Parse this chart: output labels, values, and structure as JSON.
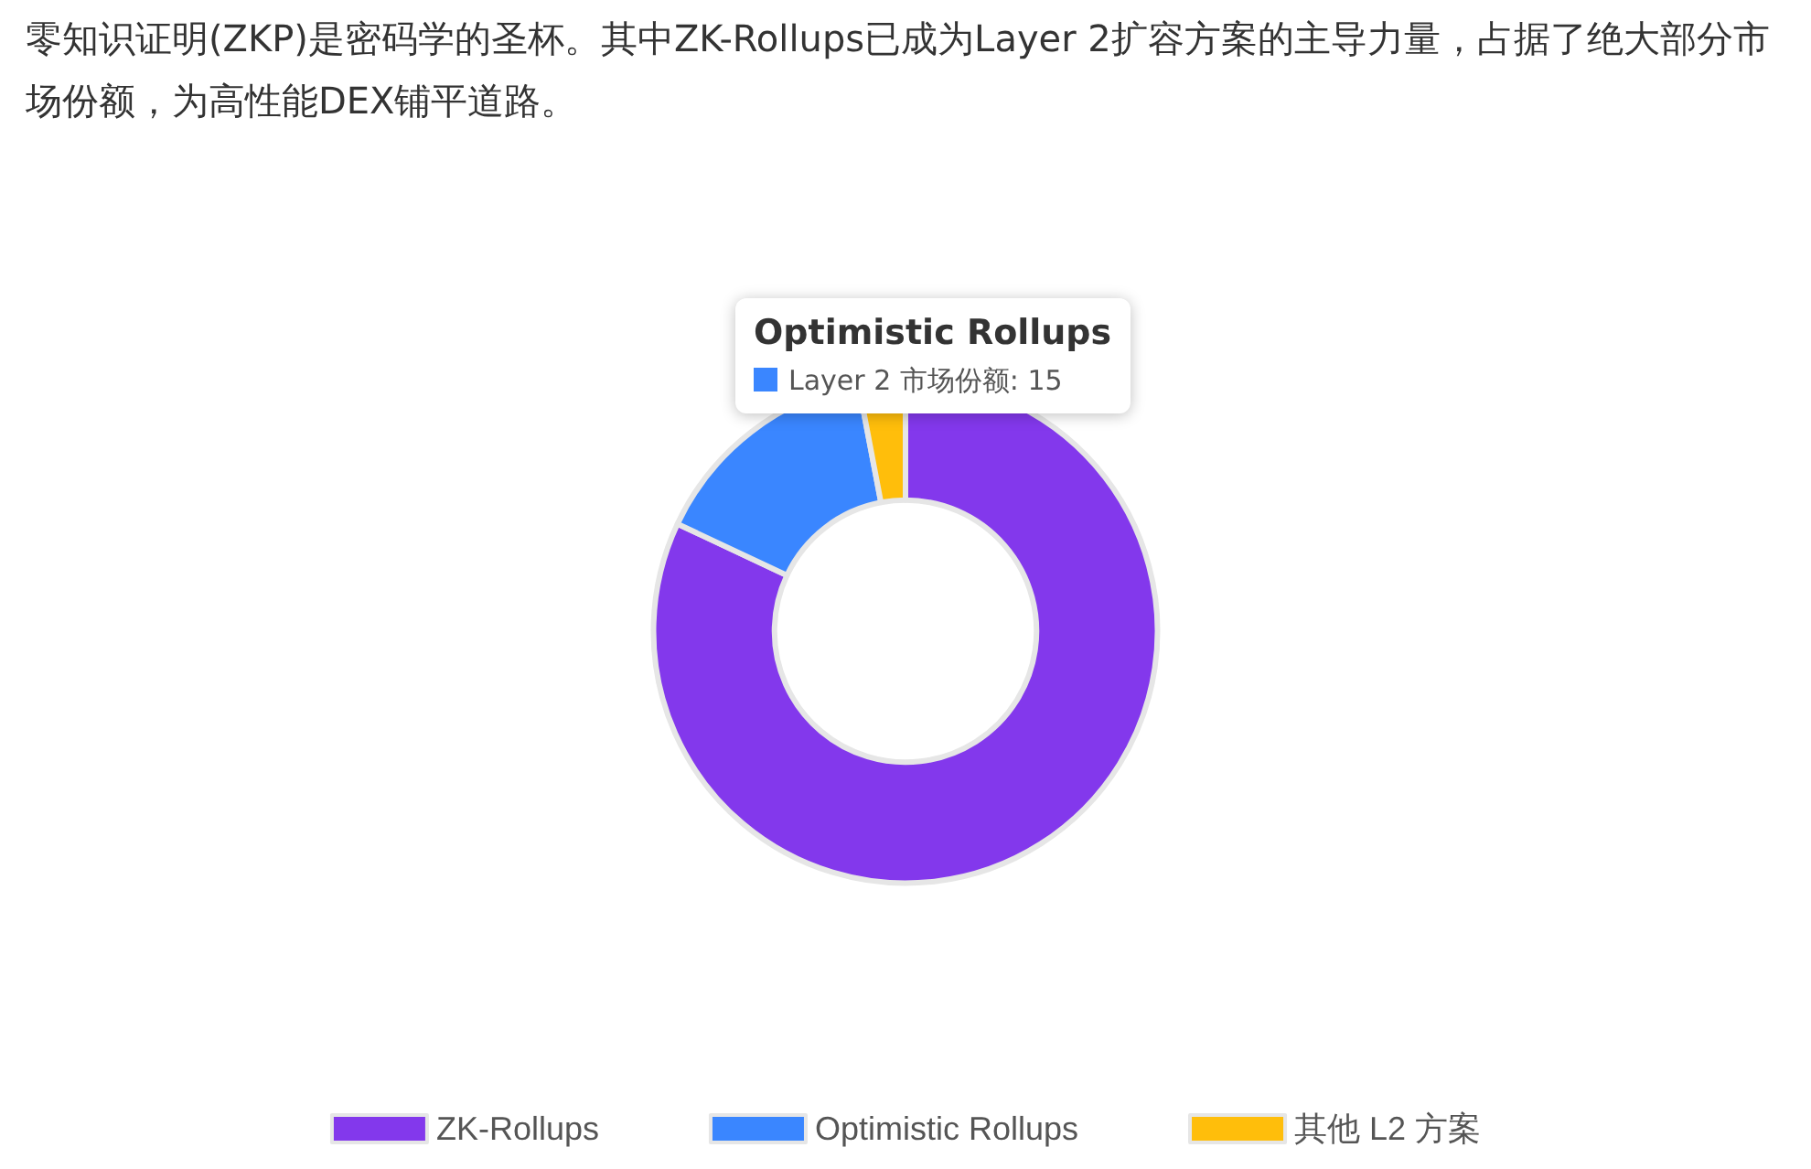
{
  "chart_data": {
    "type": "donut",
    "title": "零知识证明(ZKP)是密码学的圣杯。其中ZK-Rollups已成为Layer 2扩容方案的主导力量，占据了绝大部分市场份额，为高性能DEX铺平道路。",
    "categories": [
      "ZK-Rollups",
      "Optimistic Rollups",
      "其他 L2 方案"
    ],
    "values": [
      82,
      15,
      3
    ],
    "colors": [
      "#8338ec",
      "#3a86ff",
      "#ffbe0b"
    ],
    "legend": "bottom",
    "annotations": [
      "Optimistic Rollups",
      "Layer 2 市场份额: 15"
    ]
  }
}
